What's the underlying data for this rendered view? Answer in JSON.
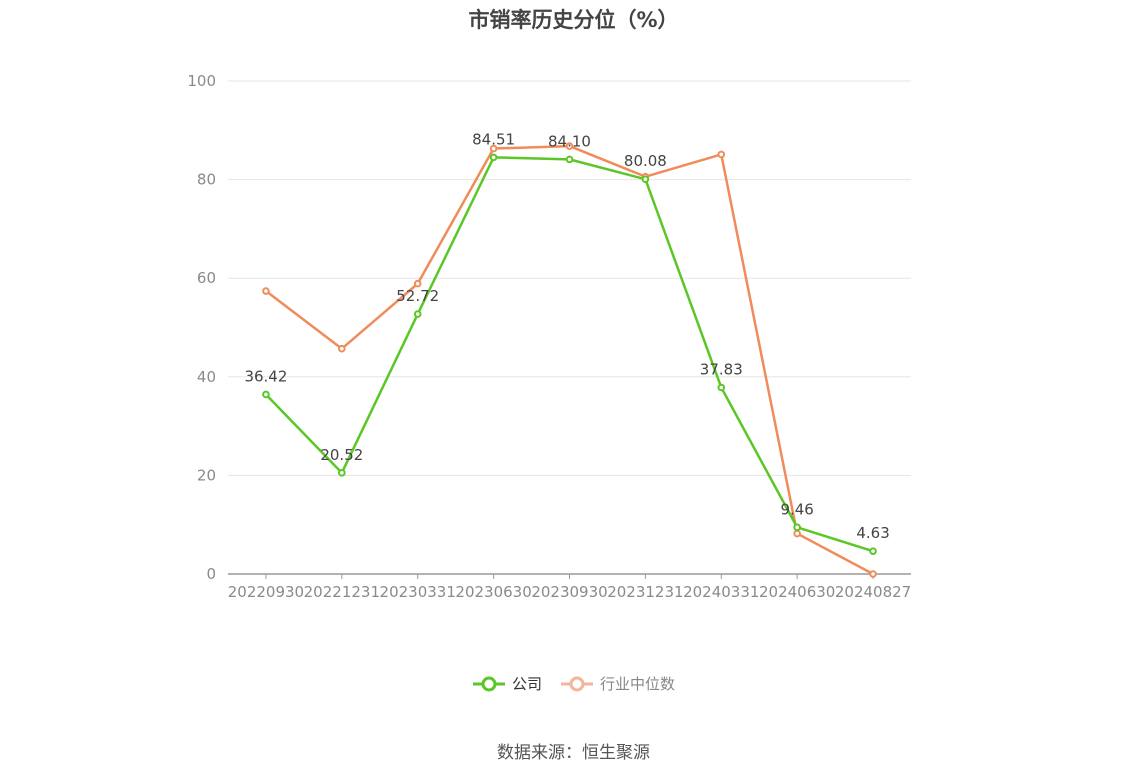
{
  "title": "市销率历史分位（%）",
  "source": "数据来源：恒生聚源",
  "colors": {
    "company": "#5bc726",
    "industry": "#f08c5a",
    "industry_legend": "#f5b59a",
    "grid": "#e6e6e6",
    "axis": "#999999"
  },
  "legend": [
    {
      "label": "公司",
      "icon": "circle-line-icon"
    },
    {
      "label": "行业中位数",
      "icon": "circle-line-icon"
    }
  ],
  "chart_data": {
    "type": "line",
    "categories": [
      "20220930",
      "20221231",
      "20230331",
      "20230630",
      "20230930",
      "20231231",
      "20240331",
      "20240630",
      "20240827"
    ],
    "ylim": [
      0,
      100
    ],
    "yticks": [
      0,
      20,
      40,
      60,
      80,
      100
    ],
    "grid": true,
    "legend_position": "bottom",
    "series": [
      {
        "name": "公司",
        "values": [
          36.42,
          20.52,
          52.72,
          84.51,
          84.1,
          80.08,
          37.83,
          9.46,
          4.63
        ],
        "labels": [
          "36.42",
          "20.52",
          "52.72",
          "84.51",
          "84.10",
          "80.08",
          "37.83",
          "9.46",
          "4.63"
        ]
      },
      {
        "name": "行业中位数",
        "values": [
          57.4,
          45.7,
          58.9,
          86.3,
          86.8,
          80.6,
          85.1,
          8.2,
          0.0
        ]
      }
    ]
  }
}
